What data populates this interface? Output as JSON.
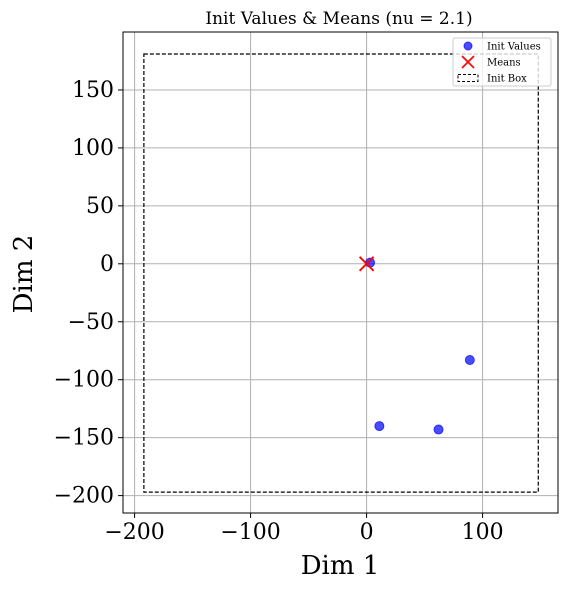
{
  "chart_data": {
    "type": "scatter",
    "title": "Init Values & Means (nu = 2.1)",
    "xlabel": "Dim 1",
    "ylabel": "Dim 2",
    "xlim": [
      -210,
      165
    ],
    "ylim": [
      -215,
      200
    ],
    "xticks": [
      -200,
      -100,
      0,
      100
    ],
    "xtick_labels": [
      "−200",
      "−100",
      "0",
      "100"
    ],
    "yticks": [
      -200,
      -150,
      -100,
      -50,
      0,
      50,
      100,
      150
    ],
    "ytick_labels": [
      "−200",
      "−150",
      "−100",
      "−50",
      "0",
      "50",
      "100",
      "150"
    ],
    "grid": true,
    "legend_position": "top-right",
    "series": [
      {
        "name": "Init Values",
        "marker": "circle",
        "color": "#0000ff",
        "points": [
          {
            "x": 3,
            "y": 1
          },
          {
            "x": 89,
            "y": -83
          },
          {
            "x": 11,
            "y": -140
          },
          {
            "x": 62,
            "y": -143
          }
        ]
      },
      {
        "name": "Means",
        "marker": "x",
        "color": "#ff0000",
        "points": [
          {
            "x": 0,
            "y": 0
          }
        ]
      }
    ],
    "box": {
      "name": "Init Box",
      "x": [
        -192,
        148
      ],
      "y": [
        -197,
        181
      ]
    }
  }
}
